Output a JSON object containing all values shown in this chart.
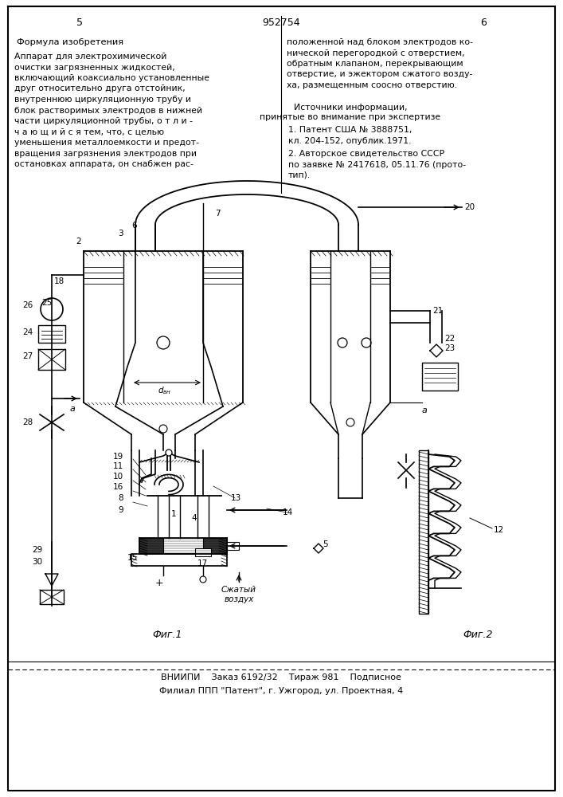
{
  "page_number_left": "5",
  "patent_number": "952754",
  "page_number_right": "6",
  "left_column_heading": "Формула изобретения",
  "left_column_text": "Аппарат для электрохимической\nочистки загрязненных жидкостей,\nвключающий коаксиально установленные\nдруг относительно друга отстойник,\nвнутреннюю циркуляционную трубу и\nблок растворимых электродов в нижней\nчасти циркуляционной трубы, о т л и -\nч а ю щ и й с я тем, что, с целью\nуменьшения металлоемкости и предот-\nвращения загрязнения электродов при\nостановках аппарата, он снабжен рас-",
  "right_column_text": "положенной над блоком электродов ко-\nнической перегородкой с отверстием,\nобратным клапаном, перекрывающим\nотверстие, и эжектором сжатого возду-\nха, размещенным соосно отверстию.",
  "right_column_heading": "Источники информации,\nпринятые во внимание при экспертизе",
  "ref1": "1. Патент США № 3888751,\nкл. 204-152, опублик.1971.",
  "ref2": "2. Авторское свидетельство СССР\nпо заявке № 2417618, 05.11.76 (прото-\nтип).",
  "fig1_label": "Фиг.1",
  "fig2_label": "Фиг.2",
  "szhaty_vozduh": "Сжатый\nвоздух",
  "footer_line1": "ВНИИПИ    Заказ 6192/32    Тираж 981    Подписное",
  "footer_line2": "Филиал ППП \"Патент\", г. Ужгород, ул. Проектная, 4",
  "bg_color": "#ffffff",
  "text_color": "#000000"
}
